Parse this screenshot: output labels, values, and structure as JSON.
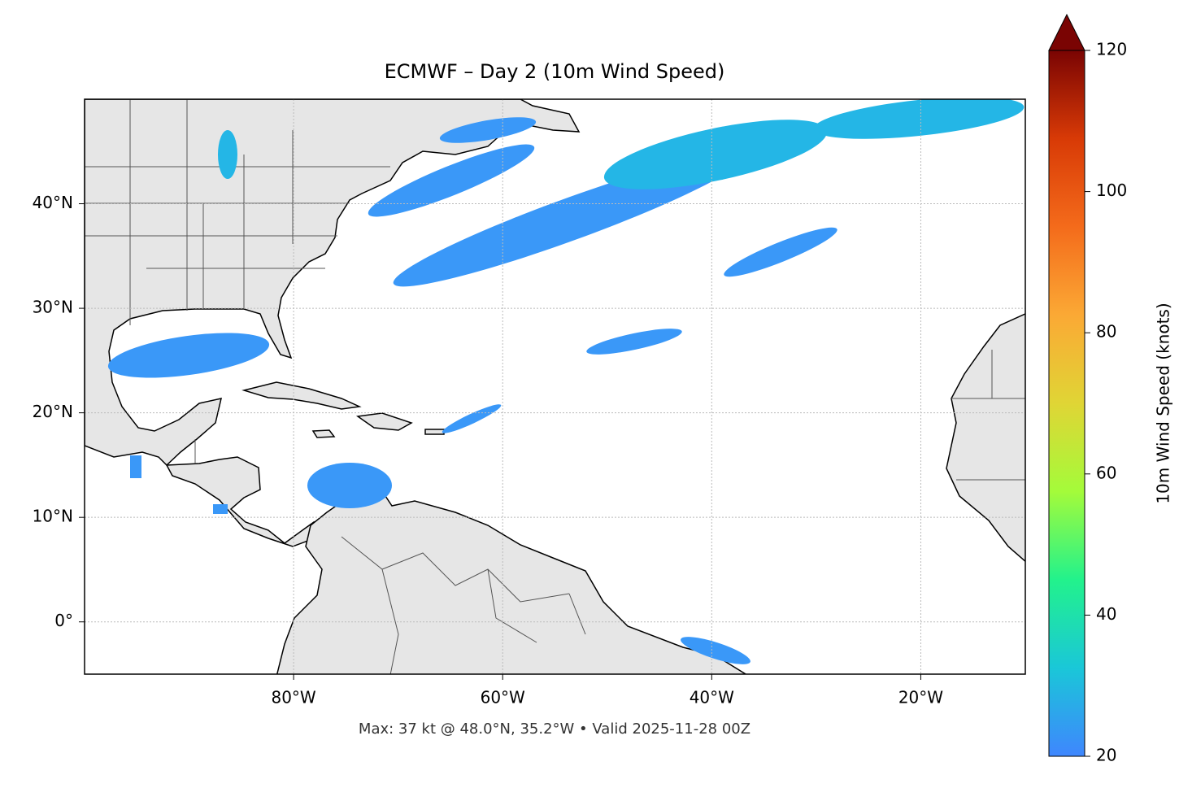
{
  "map": {
    "title": "ECMWF – Day 2 (10m Wind Speed)",
    "lonlim": [
      -100,
      -10
    ],
    "latlim": [
      -5,
      50
    ],
    "xticks": [
      {
        "value": -80,
        "label": "80°W"
      },
      {
        "value": -60,
        "label": "60°W"
      },
      {
        "value": -40,
        "label": "40°W"
      },
      {
        "value": -20,
        "label": "20°W"
      }
    ],
    "yticks": [
      {
        "value": 0,
        "label": "0°"
      },
      {
        "value": 10,
        "label": "10°N"
      },
      {
        "value": 20,
        "label": "20°N"
      },
      {
        "value": 30,
        "label": "30°N"
      },
      {
        "value": 40,
        "label": "40°N"
      }
    ],
    "grid": true,
    "colorbar": {
      "label": "10m Wind Speed (knots)",
      "lim": [
        20,
        120
      ],
      "ticks": [
        20,
        40,
        60,
        80,
        100,
        120
      ],
      "colors": [
        "#3f86fe",
        "#1ac7d8",
        "#22f28c",
        "#a4fb3a",
        "#e0d535",
        "#fba935",
        "#f46b1b",
        "#d83a06",
        "#7a0403"
      ]
    },
    "footnote": "Max: 37 kt @ 48.0°N, 35.2°W • Valid 2025-11-28 00Z"
  }
}
